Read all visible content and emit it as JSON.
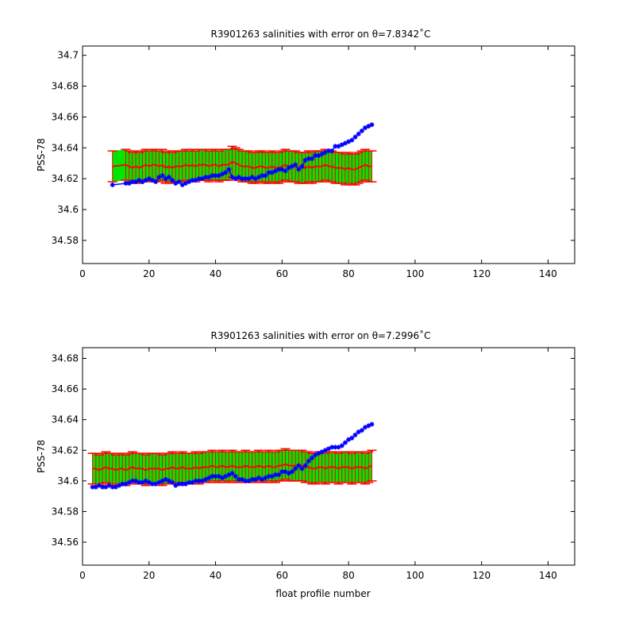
{
  "chart_data": [
    {
      "type": "line",
      "title": "R3901263 salinities with error on θ=7.8342˚C",
      "xlabel": "",
      "ylabel": "PSS-78",
      "xlim": [
        0,
        148
      ],
      "ylim": [
        34.565,
        34.706
      ],
      "xticks": [
        0,
        20,
        40,
        60,
        80,
        100,
        120,
        140
      ],
      "yticks": [
        34.58,
        34.6,
        34.62,
        34.64,
        34.66,
        34.68,
        34.7
      ],
      "ytick_labels": [
        "34.58",
        "34.6",
        "34.62",
        "34.64",
        "34.66",
        "34.68",
        "34.7"
      ],
      "grid": false,
      "colors": {
        "observed": "#0000ff",
        "mapped": "#ff0000",
        "envelope": "#00e600",
        "bars": "#ff0000",
        "axes": "#000000"
      },
      "series": [
        {
          "role": "observed",
          "x": [
            9,
            13,
            14,
            15,
            16,
            17,
            18,
            19,
            20,
            21,
            22,
            23,
            24,
            25,
            26,
            27,
            28,
            29,
            30,
            31,
            32,
            33,
            34,
            35,
            36,
            37,
            38,
            39,
            40,
            41,
            42,
            43,
            44,
            45,
            46,
            47,
            48,
            49,
            50,
            51,
            52,
            53,
            54,
            55,
            56,
            57,
            58,
            59,
            60,
            61,
            62,
            63,
            64,
            65,
            66,
            67,
            68,
            69,
            70,
            71,
            72,
            73,
            74,
            75,
            76,
            77,
            78,
            79,
            80,
            81,
            82,
            83,
            84,
            85,
            86,
            87
          ],
          "values": [
            34.616,
            34.617,
            34.617,
            34.618,
            34.618,
            34.619,
            34.618,
            34.619,
            34.62,
            34.619,
            34.618,
            34.621,
            34.622,
            34.62,
            34.621,
            34.619,
            34.617,
            34.618,
            34.616,
            34.617,
            34.618,
            34.619,
            34.619,
            34.62,
            34.62,
            34.621,
            34.621,
            34.622,
            34.622,
            34.622,
            34.623,
            34.624,
            34.626,
            34.621,
            34.62,
            34.621,
            34.62,
            34.62,
            34.62,
            34.621,
            34.62,
            34.621,
            34.622,
            34.622,
            34.624,
            34.624,
            34.625,
            34.626,
            34.626,
            34.625,
            34.627,
            34.628,
            34.629,
            34.626,
            34.628,
            34.632,
            34.633,
            34.633,
            34.635,
            34.635,
            34.636,
            34.637,
            34.638,
            34.638,
            34.641,
            34.641,
            34.642,
            34.643,
            34.644,
            34.645,
            34.647,
            34.649,
            34.651,
            34.653,
            34.654,
            34.655
          ]
        },
        {
          "role": "mapped",
          "x": [
            9,
            13,
            14,
            15,
            16,
            17,
            18,
            19,
            20,
            21,
            22,
            23,
            24,
            25,
            26,
            27,
            28,
            29,
            30,
            31,
            32,
            33,
            34,
            35,
            36,
            37,
            38,
            39,
            40,
            41,
            42,
            43,
            44,
            45,
            46,
            47,
            48,
            49,
            50,
            51,
            52,
            53,
            54,
            55,
            56,
            57,
            58,
            59,
            60,
            61,
            62,
            63,
            64,
            65,
            66,
            67,
            68,
            69,
            70,
            71,
            72,
            73,
            74,
            75,
            76,
            77,
            78,
            79,
            80,
            81,
            82,
            83,
            84,
            85,
            86,
            87
          ],
          "values": [
            34.628,
            34.629,
            34.628,
            34.627,
            34.628,
            34.627,
            34.628,
            34.629,
            34.628,
            34.629,
            34.629,
            34.628,
            34.629,
            34.627,
            34.628,
            34.627,
            34.628,
            34.628,
            34.628,
            34.629,
            34.628,
            34.629,
            34.628,
            34.629,
            34.629,
            34.629,
            34.628,
            34.629,
            34.629,
            34.628,
            34.629,
            34.629,
            34.629,
            34.631,
            34.63,
            34.629,
            34.628,
            34.628,
            34.628,
            34.627,
            34.627,
            34.628,
            34.628,
            34.627,
            34.627,
            34.628,
            34.627,
            34.627,
            34.628,
            34.629,
            34.628,
            34.628,
            34.628,
            34.627,
            34.627,
            34.627,
            34.628,
            34.627,
            34.628,
            34.628,
            34.628,
            34.629,
            34.628,
            34.628,
            34.627,
            34.627,
            34.627,
            34.626,
            34.627,
            34.626,
            34.626,
            34.627,
            34.628,
            34.629,
            34.628,
            34.628
          ]
        }
      ],
      "error": 0.01
    },
    {
      "type": "line",
      "title": "R3901263 salinities with error on θ=7.2996˚C",
      "xlabel": "float profile number",
      "ylabel": "PSS-78",
      "xlim": [
        0,
        148
      ],
      "ylim": [
        34.545,
        34.687
      ],
      "xticks": [
        0,
        20,
        40,
        60,
        80,
        100,
        120,
        140
      ],
      "yticks": [
        34.56,
        34.58,
        34.6,
        34.62,
        34.64,
        34.66,
        34.68
      ],
      "ytick_labels": [
        "34.56",
        "34.58",
        "34.6",
        "34.62",
        "34.64",
        "34.66",
        "34.68"
      ],
      "grid": false,
      "colors": {
        "observed": "#0000ff",
        "mapped": "#ff0000",
        "envelope": "#00e600",
        "bars": "#ff0000",
        "axes": "#000000"
      },
      "series": [
        {
          "role": "observed",
          "x": [
            3,
            4,
            5,
            6,
            7,
            8,
            9,
            10,
            11,
            12,
            13,
            14,
            15,
            16,
            17,
            18,
            19,
            20,
            21,
            22,
            23,
            24,
            25,
            26,
            27,
            28,
            29,
            30,
            31,
            32,
            33,
            34,
            35,
            36,
            37,
            38,
            39,
            40,
            41,
            42,
            43,
            44,
            45,
            46,
            47,
            48,
            49,
            50,
            51,
            52,
            53,
            54,
            55,
            56,
            57,
            58,
            59,
            60,
            61,
            62,
            63,
            64,
            65,
            66,
            67,
            68,
            69,
            70,
            71,
            72,
            73,
            74,
            75,
            76,
            77,
            78,
            79,
            80,
            81,
            82,
            83,
            84,
            85,
            86,
            87
          ],
          "values": [
            34.596,
            34.596,
            34.597,
            34.596,
            34.596,
            34.597,
            34.596,
            34.596,
            34.597,
            34.598,
            34.598,
            34.599,
            34.6,
            34.6,
            34.599,
            34.599,
            34.6,
            34.599,
            34.598,
            34.598,
            34.599,
            34.6,
            34.601,
            34.6,
            34.599,
            34.597,
            34.598,
            34.598,
            34.598,
            34.599,
            34.599,
            34.6,
            34.6,
            34.6,
            34.601,
            34.602,
            34.603,
            34.603,
            34.603,
            34.602,
            34.603,
            34.604,
            34.605,
            34.603,
            34.601,
            34.601,
            34.6,
            34.6,
            34.601,
            34.601,
            34.602,
            34.601,
            34.602,
            34.603,
            34.603,
            34.604,
            34.604,
            34.606,
            34.606,
            34.605,
            34.606,
            34.608,
            34.61,
            34.608,
            34.61,
            34.613,
            34.615,
            34.617,
            34.618,
            34.619,
            34.62,
            34.621,
            34.622,
            34.622,
            34.622,
            34.623,
            34.625,
            34.627,
            34.628,
            34.63,
            34.632,
            34.633,
            34.635,
            34.636,
            34.637
          ]
        },
        {
          "role": "mapped",
          "x": [
            3,
            4,
            5,
            6,
            7,
            8,
            9,
            10,
            11,
            12,
            13,
            14,
            15,
            16,
            17,
            18,
            19,
            20,
            21,
            22,
            23,
            24,
            25,
            26,
            27,
            28,
            29,
            30,
            31,
            32,
            33,
            34,
            35,
            36,
            37,
            38,
            39,
            40,
            41,
            42,
            43,
            44,
            45,
            46,
            47,
            48,
            49,
            50,
            51,
            52,
            53,
            54,
            55,
            56,
            57,
            58,
            59,
            60,
            61,
            62,
            63,
            64,
            65,
            66,
            67,
            68,
            69,
            70,
            71,
            72,
            73,
            74,
            75,
            76,
            77,
            78,
            79,
            80,
            81,
            82,
            83,
            84,
            85,
            86,
            87
          ],
          "values": [
            34.608,
            34.608,
            34.607,
            34.608,
            34.609,
            34.608,
            34.608,
            34.607,
            34.608,
            34.608,
            34.607,
            34.608,
            34.609,
            34.608,
            34.608,
            34.608,
            34.607,
            34.608,
            34.608,
            34.608,
            34.608,
            34.607,
            34.608,
            34.608,
            34.609,
            34.608,
            34.608,
            34.609,
            34.608,
            34.608,
            34.608,
            34.609,
            34.608,
            34.609,
            34.609,
            34.609,
            34.61,
            34.609,
            34.609,
            34.61,
            34.609,
            34.609,
            34.61,
            34.609,
            34.609,
            34.609,
            34.61,
            34.609,
            34.609,
            34.609,
            34.61,
            34.609,
            34.609,
            34.61,
            34.609,
            34.609,
            34.61,
            34.61,
            34.611,
            34.61,
            34.61,
            34.61,
            34.61,
            34.61,
            34.609,
            34.609,
            34.608,
            34.608,
            34.609,
            34.609,
            34.608,
            34.609,
            34.609,
            34.609,
            34.608,
            34.609,
            34.609,
            34.609,
            34.608,
            34.609,
            34.609,
            34.609,
            34.608,
            34.609,
            34.61
          ]
        }
      ],
      "error": 0.01
    }
  ]
}
